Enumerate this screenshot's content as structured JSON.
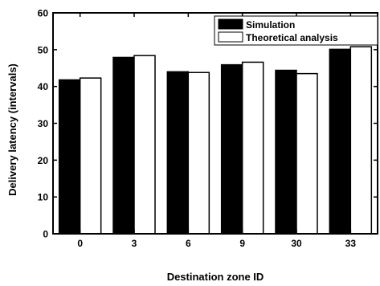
{
  "chart_data": {
    "type": "bar",
    "title": "",
    "xlabel": "Destination zone ID",
    "ylabel": "Delivery latency (intervals)",
    "categories": [
      "0",
      "3",
      "6",
      "9",
      "30",
      "33"
    ],
    "series": [
      {
        "name": "Simulation",
        "color": "#000000",
        "values": [
          41.8,
          47.9,
          44.0,
          45.9,
          44.4,
          50.1
        ]
      },
      {
        "name": "Theoretical analysis",
        "color": "#ffffff",
        "values": [
          42.3,
          48.4,
          43.8,
          46.6,
          43.5,
          50.8
        ]
      }
    ],
    "ylim": [
      0,
      60
    ],
    "yticks": [
      "0",
      "10",
      "20",
      "30",
      "40",
      "50",
      "60"
    ],
    "grid": false,
    "legend_position": "top-right"
  }
}
